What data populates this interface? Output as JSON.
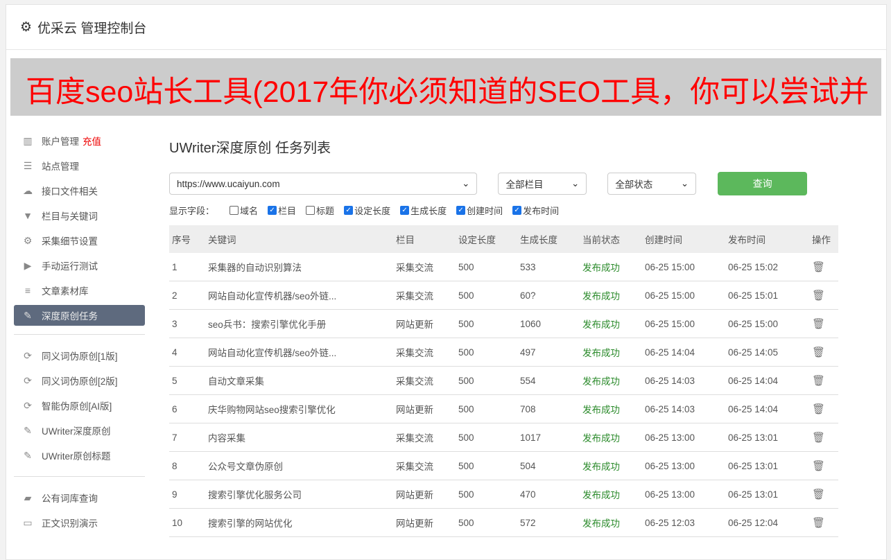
{
  "header": {
    "title": "优采云 管理控制台",
    "icon": "gear-icon"
  },
  "sidebar": {
    "group1": [
      {
        "label": "账户管理",
        "extra": "充值",
        "icon": "bar-chart-icon"
      },
      {
        "label": "站点管理",
        "icon": "server-icon"
      },
      {
        "label": "接口文件相关",
        "icon": "cloud-upload-icon"
      },
      {
        "label": "栏目与关键词",
        "icon": "filter-icon"
      },
      {
        "label": "采集细节设置",
        "icon": "gears-icon"
      },
      {
        "label": "手动运行测试",
        "icon": "play-icon"
      },
      {
        "label": "文章素材库",
        "icon": "database-icon"
      },
      {
        "label": "深度原创任务",
        "icon": "edit-icon",
        "active": true
      }
    ],
    "group2": [
      {
        "label": "同义词伪原创[1版]",
        "icon": "refresh-icon"
      },
      {
        "label": "同义词伪原创[2版]",
        "icon": "refresh-icon"
      },
      {
        "label": "智能伪原创[AI版]",
        "icon": "refresh-icon"
      },
      {
        "label": "UWriter深度原创",
        "icon": "edit-icon"
      },
      {
        "label": "UWriter原创标题",
        "icon": "edit-icon"
      }
    ],
    "group3": [
      {
        "label": "公有词库查询",
        "icon": "book-icon"
      },
      {
        "label": "正文识别演示",
        "icon": "monitor-icon"
      }
    ]
  },
  "main": {
    "title": "UWriter深度原创 任务列表",
    "site_select": "https://www.ucaiyun.com",
    "column_select": "全部栏目",
    "status_select": "全部状态",
    "query_label": "查询",
    "fields_label": "显示字段：",
    "fields": [
      {
        "label": "域名",
        "checked": false
      },
      {
        "label": "栏目",
        "checked": true
      },
      {
        "label": "标题",
        "checked": false
      },
      {
        "label": "设定长度",
        "checked": true
      },
      {
        "label": "生成长度",
        "checked": true
      },
      {
        "label": "创建时间",
        "checked": true
      },
      {
        "label": "发布时间",
        "checked": true
      }
    ],
    "columns": [
      "序号",
      "关键词",
      "栏目",
      "设定长度",
      "生成长度",
      "当前状态",
      "创建时间",
      "发布时间",
      "操作"
    ],
    "rows": [
      [
        "1",
        "采集器的自动识别算法",
        "采集交流",
        "500",
        "533",
        "发布成功",
        "06-25 15:00",
        "06-25 15:02"
      ],
      [
        "2",
        "网站自动化宣传机器/seo外链...",
        "采集交流",
        "500",
        "60?",
        "发布成功",
        "06-25 15:00",
        "06-25 15:01"
      ],
      [
        "3",
        "seo兵书：搜索引擎优化手册",
        "网站更新",
        "500",
        "1060",
        "发布成功",
        "06-25 15:00",
        "06-25 15:00"
      ],
      [
        "4",
        "网站自动化宣传机器/seo外链...",
        "采集交流",
        "500",
        "497",
        "发布成功",
        "06-25 14:04",
        "06-25 14:05"
      ],
      [
        "5",
        "自动文章采集",
        "采集交流",
        "500",
        "554",
        "发布成功",
        "06-25 14:03",
        "06-25 14:04"
      ],
      [
        "6",
        "庆华购物网站seo搜索引擎优化",
        "网站更新",
        "500",
        "708",
        "发布成功",
        "06-25 14:03",
        "06-25 14:04"
      ],
      [
        "7",
        "内容采集",
        "采集交流",
        "500",
        "1017",
        "发布成功",
        "06-25 13:00",
        "06-25 13:01"
      ],
      [
        "8",
        "公众号文章伪原创",
        "采集交流",
        "500",
        "504",
        "发布成功",
        "06-25 13:00",
        "06-25 13:01"
      ],
      [
        "9",
        "搜索引擎优化服务公司",
        "网站更新",
        "500",
        "470",
        "发布成功",
        "06-25 13:00",
        "06-25 13:01"
      ],
      [
        "10",
        "搜索引擎的网站优化",
        "网站更新",
        "500",
        "572",
        "发布成功",
        "06-25 12:03",
        "06-25 12:04"
      ]
    ]
  },
  "overlay": {
    "text": "百度seo站长工具(2017年你必须知道的SEO工具，你可以尝试并"
  },
  "colors": {
    "accent": "#5cb85c",
    "success": "#2a8a2a",
    "danger": "#ee0000",
    "active": "#5e6a7e"
  }
}
